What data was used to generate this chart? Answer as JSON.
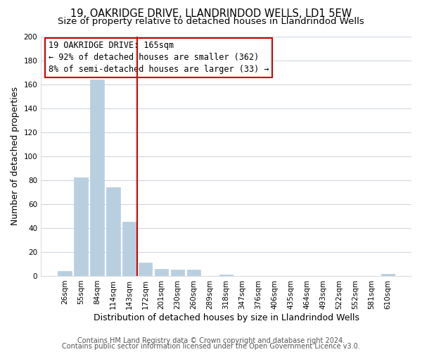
{
  "title": "19, OAKRIDGE DRIVE, LLANDRINDOD WELLS, LD1 5EW",
  "subtitle": "Size of property relative to detached houses in Llandrindod Wells",
  "xlabel": "Distribution of detached houses by size in Llandrindod Wells",
  "ylabel": "Number of detached properties",
  "bar_labels": [
    "26sqm",
    "55sqm",
    "84sqm",
    "114sqm",
    "143sqm",
    "172sqm",
    "201sqm",
    "230sqm",
    "260sqm",
    "289sqm",
    "318sqm",
    "347sqm",
    "376sqm",
    "406sqm",
    "435sqm",
    "464sqm",
    "493sqm",
    "522sqm",
    "552sqm",
    "581sqm",
    "610sqm"
  ],
  "bar_values": [
    4,
    82,
    164,
    74,
    45,
    11,
    6,
    5,
    5,
    0,
    1,
    0,
    0,
    0,
    0,
    0,
    0,
    0,
    0,
    0,
    2
  ],
  "bar_color": "#b8cfe0",
  "bar_edge_color": "#b8cfe0",
  "highlight_bar_index": 5,
  "highlight_color": "#cc0000",
  "ylim": [
    0,
    200
  ],
  "yticks": [
    0,
    20,
    40,
    60,
    80,
    100,
    120,
    140,
    160,
    180,
    200
  ],
  "annotation_title": "19 OAKRIDGE DRIVE: 165sqm",
  "annotation_line1": "← 92% of detached houses are smaller (362)",
  "annotation_line2": "8% of semi-detached houses are larger (33) →",
  "footer_line1": "Contains HM Land Registry data © Crown copyright and database right 2024.",
  "footer_line2": "Contains public sector information licensed under the Open Government Licence v3.0.",
  "background_color": "#ffffff",
  "plot_bg_color": "#ffffff",
  "grid_color": "#d0d8e0",
  "title_fontsize": 10.5,
  "subtitle_fontsize": 9.5,
  "axis_label_fontsize": 9,
  "tick_fontsize": 7.5,
  "footer_fontsize": 7,
  "ann_fontsize": 8.5
}
